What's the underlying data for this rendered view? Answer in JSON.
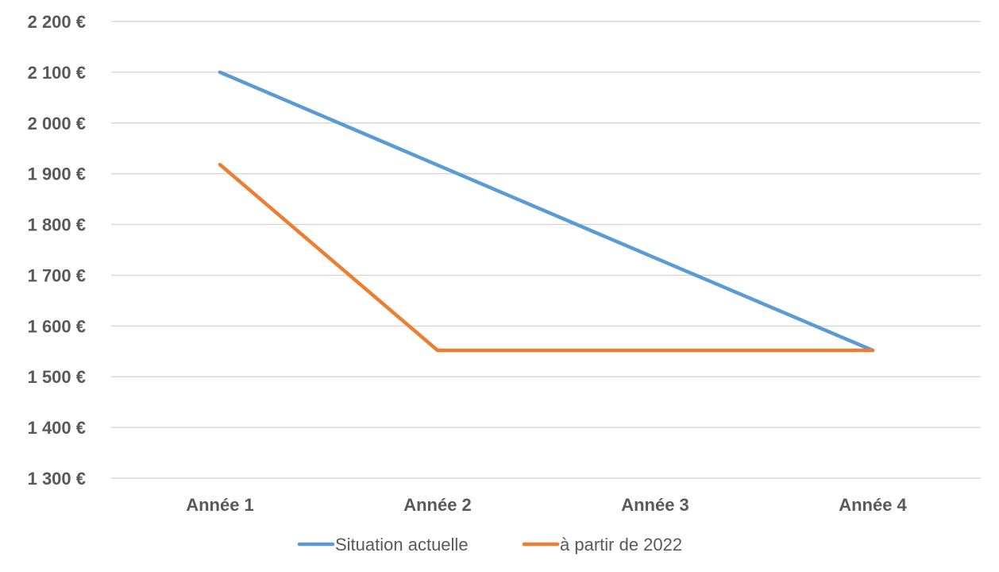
{
  "chart_data": {
    "type": "line",
    "title": "",
    "xlabel": "",
    "ylabel": "",
    "categories": [
      "Année 1",
      "Année 2",
      "Année 3",
      "Année 4"
    ],
    "ylim": [
      1300,
      2200
    ],
    "y_ticks": [
      2200,
      2100,
      2000,
      1900,
      1800,
      1700,
      1600,
      1500,
      1400,
      1300
    ],
    "y_tick_labels": [
      "2 200 €",
      "2 100 €",
      "2 000 €",
      "1 900 €",
      "1 800 €",
      "1 700 €",
      "1 600 €",
      "1 500 €",
      "1 400 €",
      "1 300 €"
    ],
    "grid": true,
    "legend_position": "bottom",
    "series": [
      {
        "name": "Situation actuelle",
        "color": "#5b9bd5",
        "values": [
          2100,
          1917,
          1734,
          1552
        ]
      },
      {
        "name": "à partir de 2022",
        "color": "#ed7d31",
        "values": [
          1918,
          1552,
          1552,
          1552
        ]
      }
    ]
  }
}
